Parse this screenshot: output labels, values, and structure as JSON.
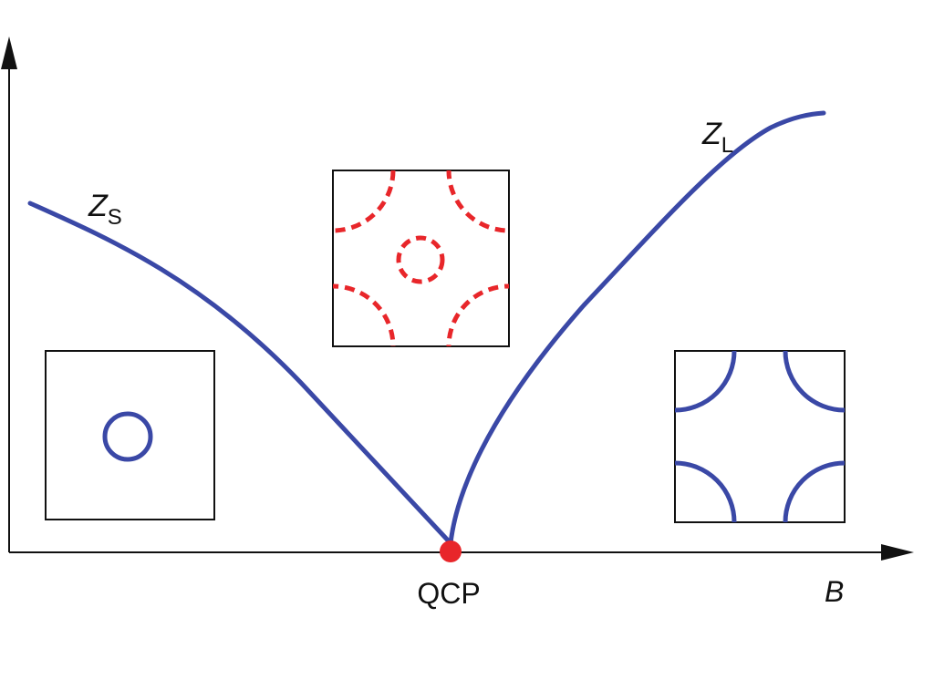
{
  "labels": {
    "z_small": "Z",
    "z_small_sub": "S",
    "z_large": "Z",
    "z_large_sub": "L",
    "qcp": "QCP",
    "x_axis": "B"
  },
  "colors": {
    "curve": "#3a48a6",
    "critical_point": "#e8262a",
    "dashed_fermi_surface": "#e8262a",
    "axes": "#111111",
    "box_border": "#111111"
  },
  "insets": [
    {
      "name": "small-fermi-surface",
      "style": "solid",
      "pockets": "central-circle"
    },
    {
      "name": "critical-fermi-surface",
      "style": "dashed",
      "pockets": "central-circle-and-corner-arcs"
    },
    {
      "name": "large-fermi-surface",
      "style": "solid",
      "pockets": "corner-arcs"
    }
  ]
}
